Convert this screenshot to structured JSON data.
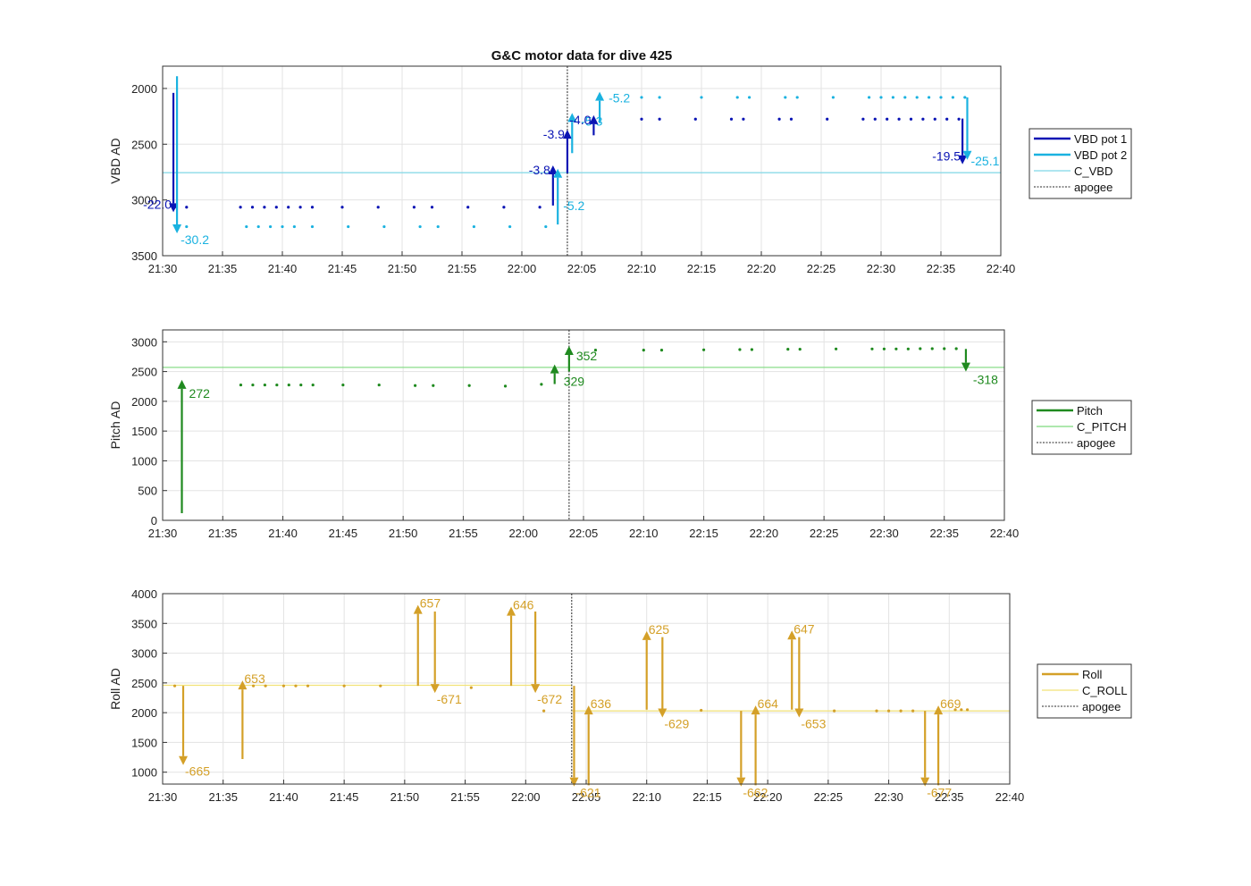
{
  "title": "G&C motor data for dive 425",
  "colors": {
    "vbd1": "#0a14b4",
    "vbd2": "#1ab2e0",
    "c_vbd": "#7fd7e6",
    "pitch": "#1f8a1f",
    "c_pitch": "#7ed97e",
    "roll": "#d4a028",
    "c_roll": "#f2e277",
    "apogee": "#555555"
  },
  "chart_data": [
    {
      "type": "line",
      "panel": "vbd",
      "ylabel": "VBD AD",
      "ylim": [
        1800,
        3500
      ],
      "y_reversed": true,
      "yticks": [
        2000,
        2500,
        3000,
        3500
      ],
      "xlim": [
        "21:30",
        "22:40"
      ],
      "xticks": [
        "21:30",
        "21:35",
        "21:40",
        "21:45",
        "21:50",
        "21:55",
        "22:00",
        "22:05",
        "22:10",
        "22:15",
        "22:20",
        "22:25",
        "22:30",
        "22:35",
        "22:40"
      ],
      "grid": true,
      "legend": {
        "placement": "outside-right",
        "entries": [
          "VBD pot 1",
          "VBD pot 2",
          "C_VBD",
          "apogee"
        ]
      },
      "apogee_x": "22:03.8",
      "reference_line": {
        "name": "C_VBD",
        "y": 2755
      },
      "series": [
        {
          "name": "VBD pot 1",
          "points": [
            [
              "21:31.0",
              3065
            ],
            [
              "21:32.0",
              3065
            ],
            [
              "21:36.5",
              3065
            ],
            [
              "21:37.5",
              3065
            ],
            [
              "21:38.5",
              3065
            ],
            [
              "21:39.5",
              3065
            ],
            [
              "21:40.5",
              3065
            ],
            [
              "21:41.5",
              3065
            ],
            [
              "21:42.5",
              3065
            ],
            [
              "21:45.0",
              3065
            ],
            [
              "21:48.0",
              3065
            ],
            [
              "21:51.0",
              3065
            ],
            [
              "21:52.5",
              3065
            ],
            [
              "21:55.5",
              3065
            ],
            [
              "21:58.5",
              3065
            ],
            [
              "22:01.5",
              3065
            ],
            [
              "22:06.0",
              2275
            ],
            [
              "22:10.0",
              2275
            ],
            [
              "22:11.5",
              2275
            ],
            [
              "22:14.5",
              2275
            ],
            [
              "22:17.5",
              2275
            ],
            [
              "22:18.5",
              2275
            ],
            [
              "22:21.5",
              2275
            ],
            [
              "22:22.5",
              2275
            ],
            [
              "22:25.5",
              2275
            ],
            [
              "22:28.5",
              2275
            ],
            [
              "22:29.5",
              2275
            ],
            [
              "22:30.5",
              2275
            ],
            [
              "22:31.5",
              2275
            ],
            [
              "22:32.5",
              2275
            ],
            [
              "22:33.5",
              2275
            ],
            [
              "22:34.5",
              2275
            ],
            [
              "22:35.5",
              2275
            ],
            [
              "22:36.5",
              2275
            ]
          ]
        },
        {
          "name": "VBD pot 2",
          "points": [
            [
              "21:32.0",
              3240
            ],
            [
              "21:37.0",
              3240
            ],
            [
              "21:38.0",
              3240
            ],
            [
              "21:39.0",
              3240
            ],
            [
              "21:40.0",
              3240
            ],
            [
              "21:41.0",
              3240
            ],
            [
              "21:42.5",
              3240
            ],
            [
              "21:45.5",
              3240
            ],
            [
              "21:48.5",
              3240
            ],
            [
              "21:51.5",
              3240
            ],
            [
              "21:53.0",
              3240
            ],
            [
              "21:56.0",
              3240
            ],
            [
              "21:59.0",
              3240
            ],
            [
              "22:02.0",
              3240
            ],
            [
              "22:10.0",
              2080
            ],
            [
              "22:11.5",
              2080
            ],
            [
              "22:15.0",
              2080
            ],
            [
              "22:18.0",
              2080
            ],
            [
              "22:19.0",
              2080
            ],
            [
              "22:22.0",
              2080
            ],
            [
              "22:23.0",
              2080
            ],
            [
              "22:26.0",
              2080
            ],
            [
              "22:29.0",
              2080
            ],
            [
              "22:30.0",
              2080
            ],
            [
              "22:31.0",
              2080
            ],
            [
              "22:32.0",
              2080
            ],
            [
              "22:33.0",
              2080
            ],
            [
              "22:34.0",
              2080
            ],
            [
              "22:35.0",
              2080
            ],
            [
              "22:36.0",
              2080
            ],
            [
              "22:37.0",
              2080
            ]
          ]
        }
      ],
      "moves": [
        {
          "series": "VBD pot 1",
          "x": "21:30.9",
          "from": 2040,
          "to": 3110,
          "label": "-22.0"
        },
        {
          "series": "VBD pot 2",
          "x": "21:31.2",
          "from": 1890,
          "to": 3300,
          "label": "-30.2"
        },
        {
          "series": "VBD pot 1",
          "x": "22:02.6",
          "from": 3050,
          "to": 2690,
          "label": "-3.8"
        },
        {
          "series": "VBD pot 2",
          "x": "22:03.0",
          "from": 3220,
          "to": 2720,
          "label": "-5.2"
        },
        {
          "series": "VBD pot 1",
          "x": "22:03.8",
          "from": 2760,
          "to": 2370,
          "label": "-3.9"
        },
        {
          "series": "VBD pot 2",
          "x": "22:04.2",
          "from": 2580,
          "to": 2220,
          "label": "-5.3"
        },
        {
          "series": "VBD pot 1",
          "x": "22:06.0",
          "from": 2420,
          "to": 2240,
          "label": "-4.0"
        },
        {
          "series": "VBD pot 2",
          "x": "22:06.5",
          "from": 2310,
          "to": 2030,
          "label": "-5.2"
        },
        {
          "series": "VBD pot 1",
          "x": "22:36.8",
          "from": 2270,
          "to": 2680,
          "label": "-19.5"
        },
        {
          "series": "VBD pot 2",
          "x": "22:37.2",
          "from": 2080,
          "to": 2640,
          "label": "-25.1"
        }
      ]
    },
    {
      "type": "line",
      "panel": "pitch",
      "ylabel": "Pitch AD",
      "ylim": [
        0,
        3200
      ],
      "y_reversed": false,
      "yticks": [
        0,
        500,
        1000,
        1500,
        2000,
        2500,
        3000
      ],
      "xlim": [
        "21:30",
        "22:40"
      ],
      "xticks": [
        "21:30",
        "21:35",
        "21:40",
        "21:45",
        "21:50",
        "21:55",
        "22:00",
        "22:05",
        "22:10",
        "22:15",
        "22:20",
        "22:25",
        "22:30",
        "22:35",
        "22:40"
      ],
      "grid": true,
      "legend": {
        "placement": "outside-right",
        "entries": [
          "Pitch",
          "C_PITCH",
          "apogee"
        ]
      },
      "apogee_x": "22:03.8",
      "reference_line": {
        "name": "C_PITCH",
        "y": 2570
      },
      "series": [
        {
          "name": "Pitch",
          "points": [
            [
              "21:36.5",
              2275
            ],
            [
              "21:37.5",
              2275
            ],
            [
              "21:38.5",
              2275
            ],
            [
              "21:39.5",
              2275
            ],
            [
              "21:40.5",
              2275
            ],
            [
              "21:41.5",
              2275
            ],
            [
              "21:42.5",
              2275
            ],
            [
              "21:45.0",
              2275
            ],
            [
              "21:48.0",
              2275
            ],
            [
              "21:51.0",
              2265
            ],
            [
              "21:52.5",
              2265
            ],
            [
              "21:55.5",
              2265
            ],
            [
              "21:58.5",
              2255
            ],
            [
              "22:01.5",
              2285
            ],
            [
              "22:06.0",
              2860
            ],
            [
              "22:10.0",
              2860
            ],
            [
              "22:11.5",
              2860
            ],
            [
              "22:15.0",
              2865
            ],
            [
              "22:18.0",
              2870
            ],
            [
              "22:19.0",
              2870
            ],
            [
              "22:22.0",
              2875
            ],
            [
              "22:23.0",
              2875
            ],
            [
              "22:26.0",
              2880
            ],
            [
              "22:29.0",
              2880
            ],
            [
              "22:30.0",
              2880
            ],
            [
              "22:31.0",
              2880
            ],
            [
              "22:32.0",
              2880
            ],
            [
              "22:33.0",
              2885
            ],
            [
              "22:34.0",
              2885
            ],
            [
              "22:35.0",
              2885
            ],
            [
              "22:36.0",
              2885
            ]
          ]
        }
      ],
      "moves": [
        {
          "series": "Pitch",
          "x": "21:31.6",
          "from": 120,
          "to": 2360,
          "label": "272"
        },
        {
          "series": "Pitch",
          "x": "22:02.6",
          "from": 2290,
          "to": 2620,
          "label": "329"
        },
        {
          "series": "Pitch",
          "x": "22:03.8",
          "from": 2500,
          "to": 2930,
          "label": "352"
        },
        {
          "series": "Pitch",
          "x": "22:36.8",
          "from": 2880,
          "to": 2500,
          "label": "-318"
        }
      ]
    },
    {
      "type": "line",
      "panel": "roll",
      "ylabel": "Roll AD",
      "ylim": [
        800,
        4000
      ],
      "y_reversed": false,
      "yticks": [
        1000,
        1500,
        2000,
        2500,
        3000,
        3500,
        4000
      ],
      "xlim": [
        "21:30",
        "22:40"
      ],
      "xticks": [
        "21:30",
        "21:35",
        "21:40",
        "21:45",
        "21:50",
        "21:55",
        "22:00",
        "22:05",
        "22:10",
        "22:15",
        "22:20",
        "22:25",
        "22:30",
        "22:35",
        "22:40"
      ],
      "grid": true,
      "legend": {
        "placement": "outside-right",
        "entries": [
          "Roll",
          "C_ROLL",
          "apogee"
        ]
      },
      "apogee_x": "22:03.8",
      "reference_segments": [
        {
          "name": "C_ROLL",
          "x0": "21:30",
          "x1": "22:03.8",
          "y": 2460
        },
        {
          "name": "C_ROLL",
          "x0": "22:03.8",
          "x1": "22:40",
          "y": 2030
        }
      ],
      "series": [
        {
          "name": "Roll",
          "points": [
            [
              "21:31.0",
              2450
            ],
            [
              "21:37.5",
              2450
            ],
            [
              "21:38.5",
              2450
            ],
            [
              "21:40.0",
              2450
            ],
            [
              "21:41.0",
              2450
            ],
            [
              "21:42.0",
              2450
            ],
            [
              "21:45.0",
              2450
            ],
            [
              "21:48.0",
              2450
            ],
            [
              "21:55.5",
              2420
            ],
            [
              "22:01.5",
              2030
            ],
            [
              "22:14.5",
              2040
            ],
            [
              "22:25.5",
              2030
            ],
            [
              "22:29.0",
              2030
            ],
            [
              "22:30.0",
              2030
            ],
            [
              "22:31.0",
              2030
            ],
            [
              "22:32.0",
              2030
            ],
            [
              "22:35.5",
              2050
            ],
            [
              "22:36.0",
              2050
            ],
            [
              "22:36.5",
              2050
            ]
          ]
        }
      ],
      "moves": [
        {
          "series": "Roll",
          "x": "21:31.7",
          "from": 2450,
          "to": 1120,
          "label": "-665"
        },
        {
          "series": "Roll",
          "x": "21:36.6",
          "from": 1220,
          "to": 2540,
          "label": "653"
        },
        {
          "series": "Roll",
          "x": "21:51.1",
          "from": 2450,
          "to": 3810,
          "label": "657"
        },
        {
          "series": "Roll",
          "x": "21:52.5",
          "from": 3700,
          "to": 2330,
          "label": "-671"
        },
        {
          "series": "Roll",
          "x": "21:58.8",
          "from": 2450,
          "to": 3780,
          "label": "646"
        },
        {
          "series": "Roll",
          "x": "22:00.8",
          "from": 3700,
          "to": 2330,
          "label": "-672"
        },
        {
          "series": "Roll",
          "x": "22:04.0",
          "from": 2450,
          "to": 760,
          "label": "-621"
        },
        {
          "series": "Roll",
          "x": "22:05.2",
          "from": 780,
          "to": 2120,
          "label": "636"
        },
        {
          "series": "Roll",
          "x": "22:10.0",
          "from": 2050,
          "to": 3370,
          "label": "625"
        },
        {
          "series": "Roll",
          "x": "22:11.3",
          "from": 3270,
          "to": 1920,
          "label": "-629"
        },
        {
          "series": "Roll",
          "x": "22:17.8",
          "from": 2030,
          "to": 760,
          "label": "-662"
        },
        {
          "series": "Roll",
          "x": "22:19.0",
          "from": 780,
          "to": 2120,
          "label": "664"
        },
        {
          "series": "Roll",
          "x": "22:22.0",
          "from": 2050,
          "to": 3380,
          "label": "647"
        },
        {
          "series": "Roll",
          "x": "22:22.6",
          "from": 3270,
          "to": 1920,
          "label": "-653"
        },
        {
          "series": "Roll",
          "x": "22:33.0",
          "from": 2030,
          "to": 760,
          "label": "-677"
        },
        {
          "series": "Roll",
          "x": "22:34.1",
          "from": 780,
          "to": 2120,
          "label": "669"
        }
      ]
    }
  ]
}
